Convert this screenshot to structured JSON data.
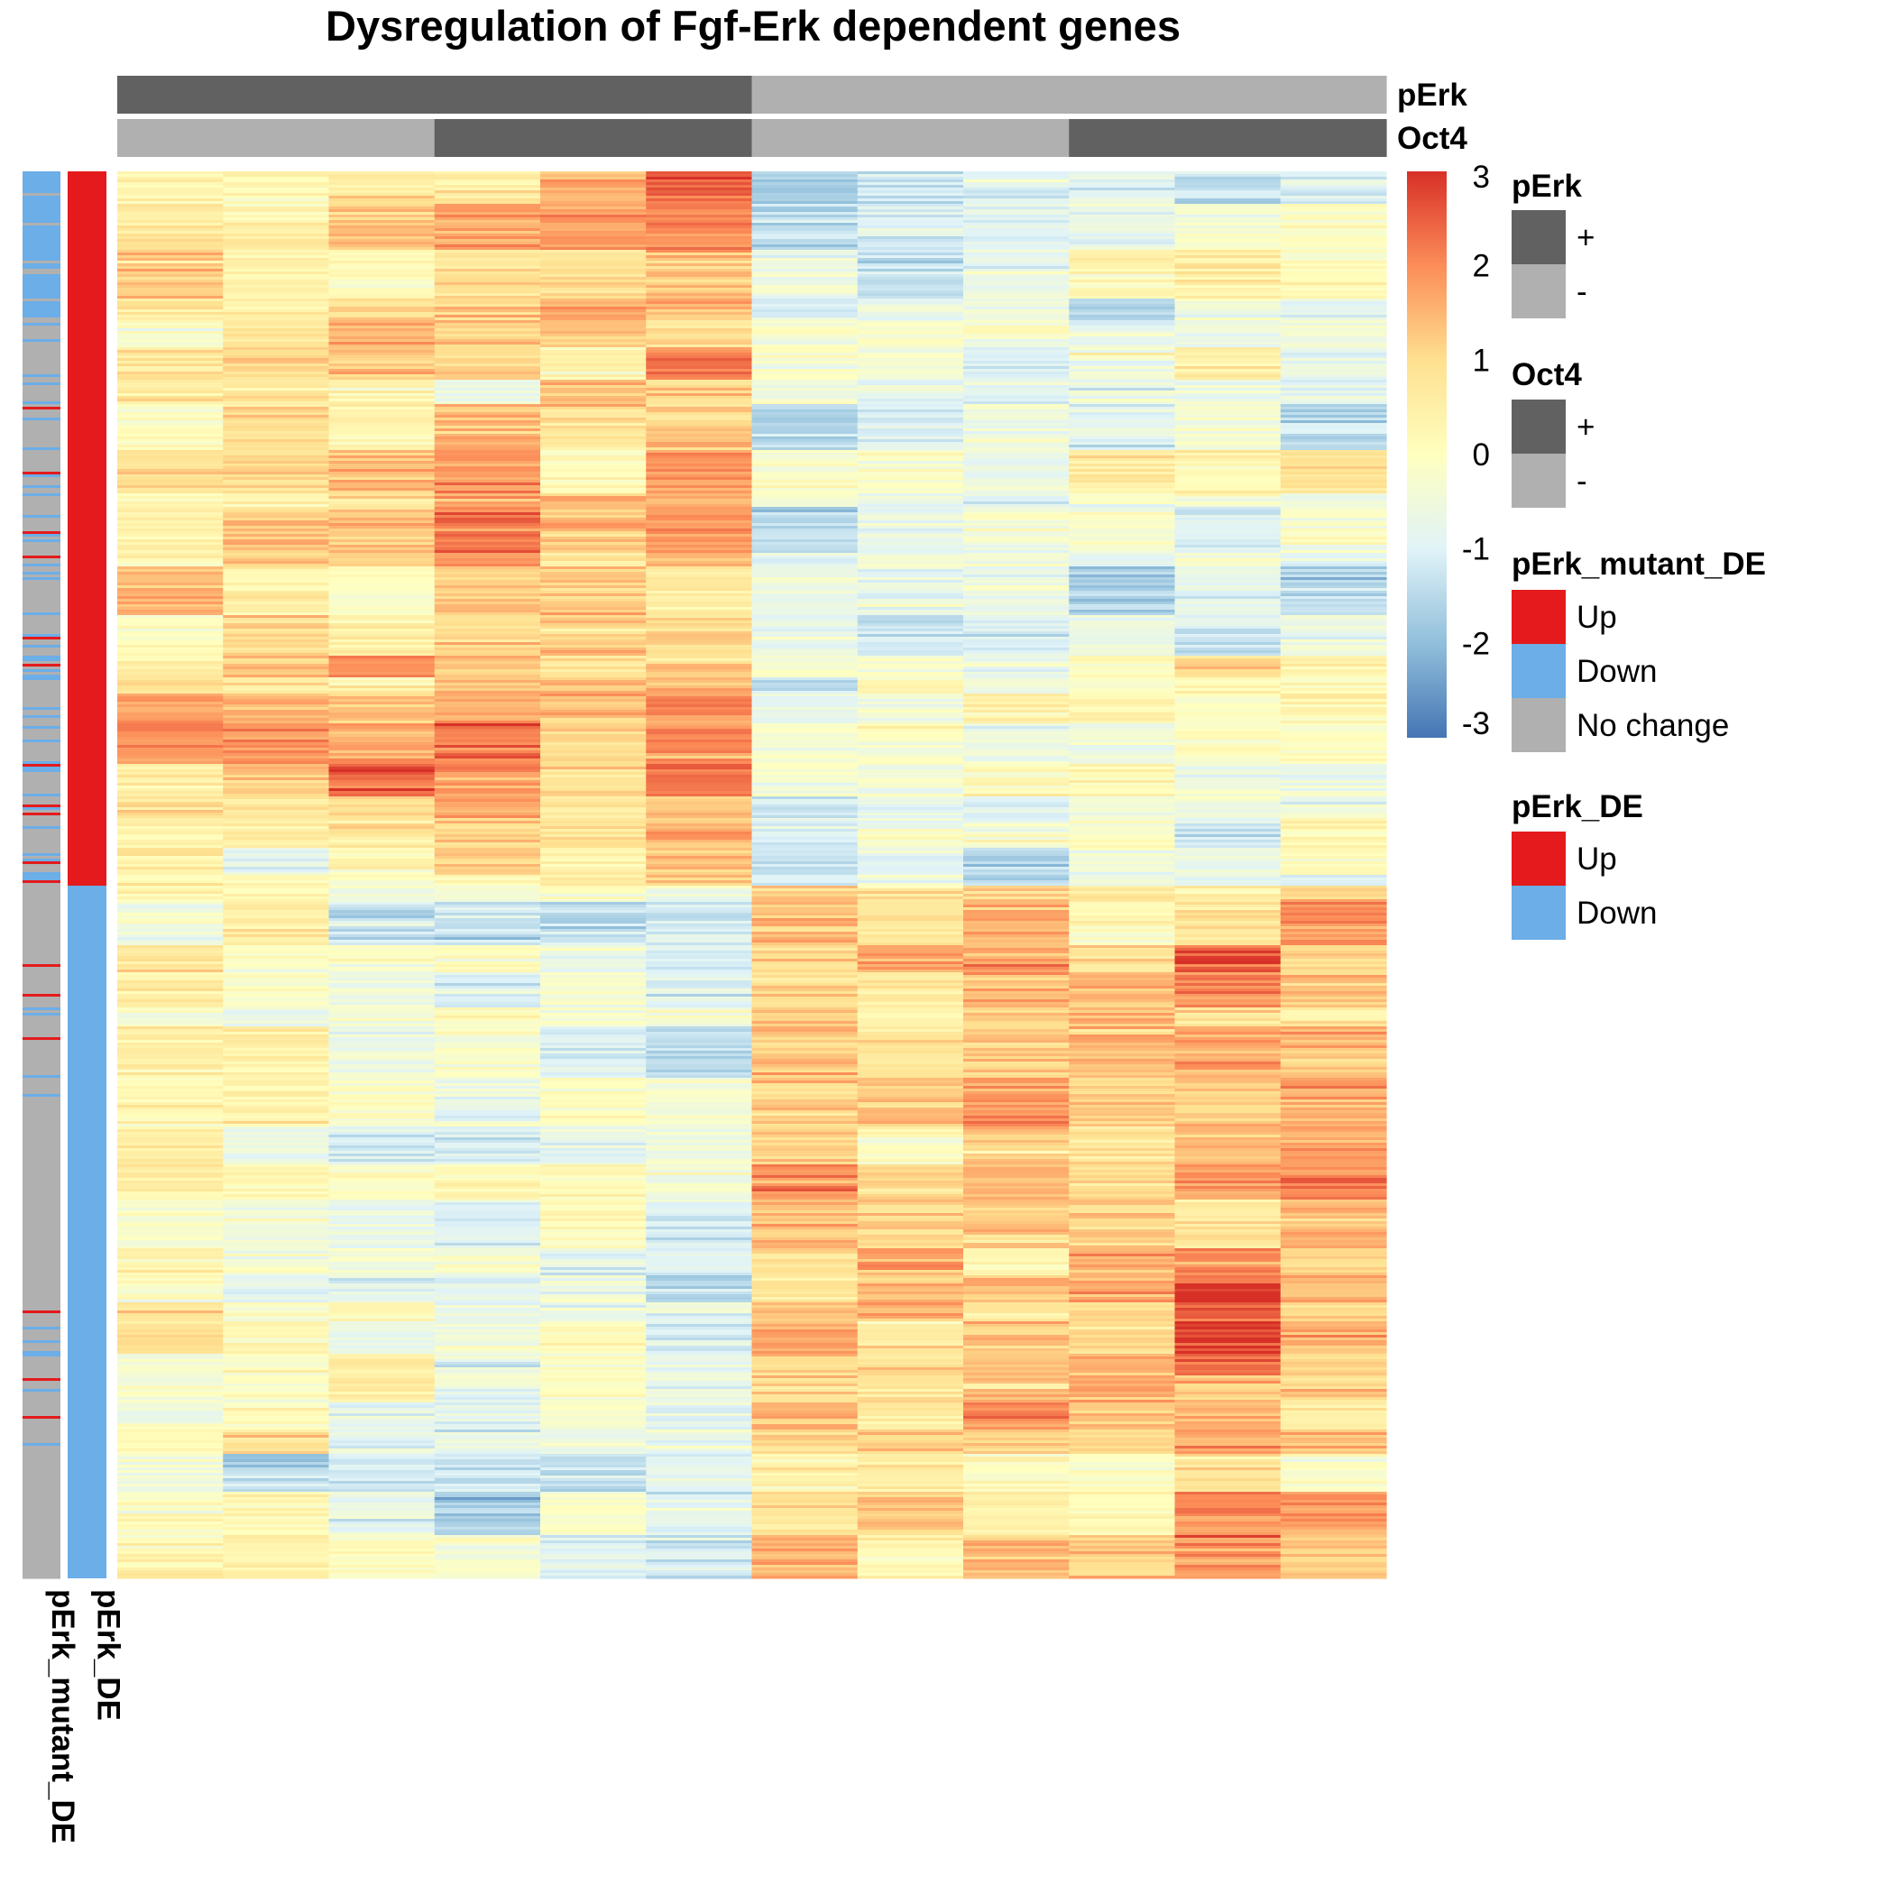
{
  "chart_data": {
    "type": "heatmap",
    "title": "Dysregulation of Fgf-Erk dependent genes",
    "n_columns": 12,
    "column_annotations": [
      {
        "name": "pErk",
        "values": [
          "+",
          "+",
          "+",
          "+",
          "+",
          "+",
          "-",
          "-",
          "-",
          "-",
          "-",
          "-"
        ]
      },
      {
        "name": "Oct4",
        "values": [
          "-",
          "-",
          "-",
          "+",
          "+",
          "+",
          "-",
          "-",
          "-",
          "+",
          "+",
          "+"
        ]
      }
    ],
    "row_annotations": [
      {
        "name": "pErk_mutant_DE",
        "levels": [
          "Up",
          "Down",
          "No change"
        ]
      },
      {
        "name": "pErk_DE",
        "levels": [
          "Up",
          "Down"
        ],
        "up_fraction": 0.508
      }
    ],
    "row_clusters": [
      {
        "label": "pErk_DE Up",
        "fraction": 0.508,
        "mutant_DE_composition": {
          "Up": 0.04,
          "Down": 0.16,
          "No change": 0.8
        },
        "column_mean_zscore": [
          0.7,
          0.8,
          0.9,
          1.2,
          1.3,
          1.4,
          -0.6,
          -0.5,
          -0.6,
          -0.4,
          -0.3,
          -0.5
        ]
      },
      {
        "label": "pErk_DE Down",
        "fraction": 0.492,
        "mutant_DE_composition": {
          "Up": 0.05,
          "Down": 0.04,
          "No change": 0.91
        },
        "column_mean_zscore": [
          0.1,
          0.0,
          -0.3,
          -0.6,
          -0.6,
          -0.9,
          1.0,
          0.9,
          1.1,
          1.2,
          1.5,
          1.1
        ]
      }
    ],
    "color_scale": {
      "min": -3,
      "max": 3,
      "ticks": [
        3,
        2,
        1,
        0,
        -1,
        -2,
        -3
      ],
      "tick_labels": [
        "3",
        "2",
        "1",
        "0",
        "-1",
        "-2",
        "-3"
      ],
      "colors": [
        "#4575b4",
        "#91bfdb",
        "#e0f3f8",
        "#ffffbf",
        "#fee090",
        "#fc8d59",
        "#d73027"
      ]
    },
    "legends": [
      {
        "title": "pErk",
        "items": [
          {
            "label": "+",
            "color": "#616161"
          },
          {
            "label": "-",
            "color": "#b0b0b0"
          }
        ]
      },
      {
        "title": "Oct4",
        "items": [
          {
            "label": "+",
            "color": "#616161"
          },
          {
            "label": "-",
            "color": "#b0b0b0"
          }
        ]
      },
      {
        "title": "pErk_mutant_DE",
        "items": [
          {
            "label": "Up",
            "color": "#e41a1c"
          },
          {
            "label": "Down",
            "color": "#6baee8"
          },
          {
            "label": "No change",
            "color": "#b0b0b0"
          }
        ]
      },
      {
        "title": "pErk_DE",
        "items": [
          {
            "label": "Up",
            "color": "#e41a1c"
          },
          {
            "label": "Down",
            "color": "#6baee8"
          }
        ]
      }
    ]
  }
}
